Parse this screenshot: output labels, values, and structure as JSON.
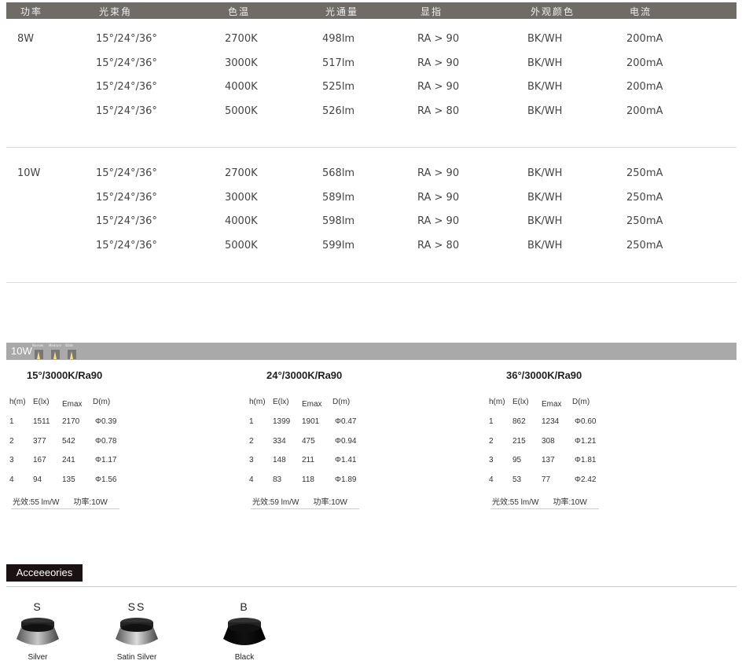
{
  "spec_table": {
    "headers": [
      "功率",
      "光束角",
      "色温",
      "光通量",
      "显指",
      "外观颜色",
      "电流"
    ],
    "groups": [
      {
        "power": "8W",
        "rows": [
          [
            "15°/24°/36°",
            "2700K",
            "498lm",
            "RA > 90",
            "BK/WH",
            "200mA"
          ],
          [
            "15°/24°/36°",
            "3000K",
            "517lm",
            "RA > 90",
            "BK/WH",
            "200mA"
          ],
          [
            "15°/24°/36°",
            "4000K",
            "525lm",
            "RA > 90",
            "BK/WH",
            "200mA"
          ],
          [
            "15°/24°/36°",
            "5000K",
            "526lm",
            "RA > 80",
            "BK/WH",
            "200mA"
          ]
        ]
      },
      {
        "power": "10W",
        "rows": [
          [
            "15°/24°/36°",
            "2700K",
            "568lm",
            "RA > 90",
            "BK/WH",
            "250mA"
          ],
          [
            "15°/24°/36°",
            "3000K",
            "589lm",
            "RA > 90",
            "BK/WH",
            "250mA"
          ],
          [
            "15°/24°/36°",
            "4000K",
            "598lm",
            "RA > 90",
            "BK/WH",
            "250mA"
          ],
          [
            "15°/24°/36°",
            "5000K",
            "599lm",
            "RA > 80",
            "BK/WH",
            "250mA"
          ]
        ]
      }
    ]
  },
  "photometric": {
    "banner_power": "10W",
    "beam_icons": [
      "Narrow",
      "Medium",
      "Wide"
    ],
    "columns": [
      "h(m)",
      "E(lx)",
      "Emax",
      "D(m)"
    ],
    "blocks": [
      {
        "title": "15°/3000K/Ra90",
        "rows": [
          [
            "1",
            "1511",
            "2170",
            "Φ0.39"
          ],
          [
            "2",
            "377",
            "542",
            "Φ0.78"
          ],
          [
            "3",
            "167",
            "241",
            "Φ1.17"
          ],
          [
            "4",
            "94",
            "135",
            "Φ1.56"
          ]
        ],
        "efficacy": "光效:55 lm/W",
        "power": "功率:10W"
      },
      {
        "title": "24°/3000K/Ra90",
        "rows": [
          [
            "1",
            "1399",
            "1901",
            "Φ0.47"
          ],
          [
            "2",
            "334",
            "475",
            "Φ0.94"
          ],
          [
            "3",
            "148",
            "211",
            "Φ1.41"
          ],
          [
            "4",
            "83",
            "118",
            "Φ1.89"
          ]
        ],
        "efficacy": "光效:59 lm/W",
        "power": "功率:10W"
      },
      {
        "title": "36°/3000K/Ra90",
        "rows": [
          [
            "1",
            "862",
            "1234",
            "Φ0.60"
          ],
          [
            "2",
            "215",
            "308",
            "Φ1.21"
          ],
          [
            "3",
            "95",
            "137",
            "Φ1.81"
          ],
          [
            "4",
            "53",
            "77",
            "Φ2.42"
          ]
        ],
        "efficacy": "光效:55 lm/W",
        "power": "功率:10W"
      }
    ]
  },
  "accessories": {
    "label": "Acceeeories",
    "items": [
      {
        "code": "S",
        "name": "Silver",
        "color": "#c8c8c8"
      },
      {
        "code": "SS",
        "name": "Satin Silver",
        "color": "#dcdcdc"
      },
      {
        "code": "B",
        "name": "Black",
        "color": "#111111"
      }
    ]
  }
}
